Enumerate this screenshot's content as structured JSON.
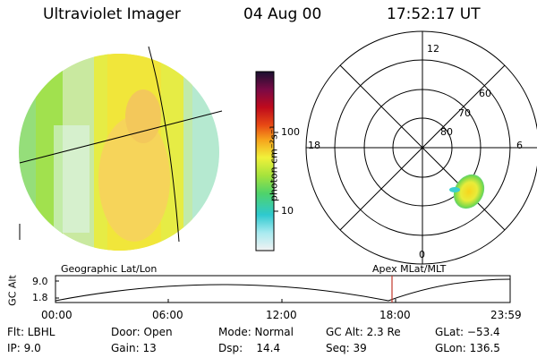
{
  "header": {
    "instrument": "Ultraviolet Imager",
    "date": "04 Aug 00",
    "time": "17:52:17 UT"
  },
  "colorbar": {
    "label": "photon cm⁻²s⁻¹",
    "ticks": [
      "100",
      "10"
    ]
  },
  "polar": {
    "mlt_labels": [
      "12",
      "18",
      "6",
      "0"
    ],
    "lat_labels": [
      "60",
      "70",
      "80"
    ]
  },
  "timeline": {
    "left_caption": "Geographic Lat/Lon",
    "right_caption": "Apex MLat/MLT",
    "y_axis_label": "GC Alt",
    "y_ticks": [
      "9.0",
      "1.8"
    ],
    "x_ticks": [
      "00:00",
      "06:00",
      "12:00",
      "18:00",
      "23:59"
    ]
  },
  "status": {
    "filter": "Flt: LBHL",
    "ip": "IP:  9.0",
    "door": "Door: Open",
    "gain": "Gain: 13",
    "mode": "Mode: Normal",
    "dsp": "Dsp:    14.4",
    "gc_alt": "GC Alt: 2.3 Re",
    "seq": "Seq: 39",
    "glat": "GLat: −53.4",
    "glon": "GLon: 136.5"
  }
}
